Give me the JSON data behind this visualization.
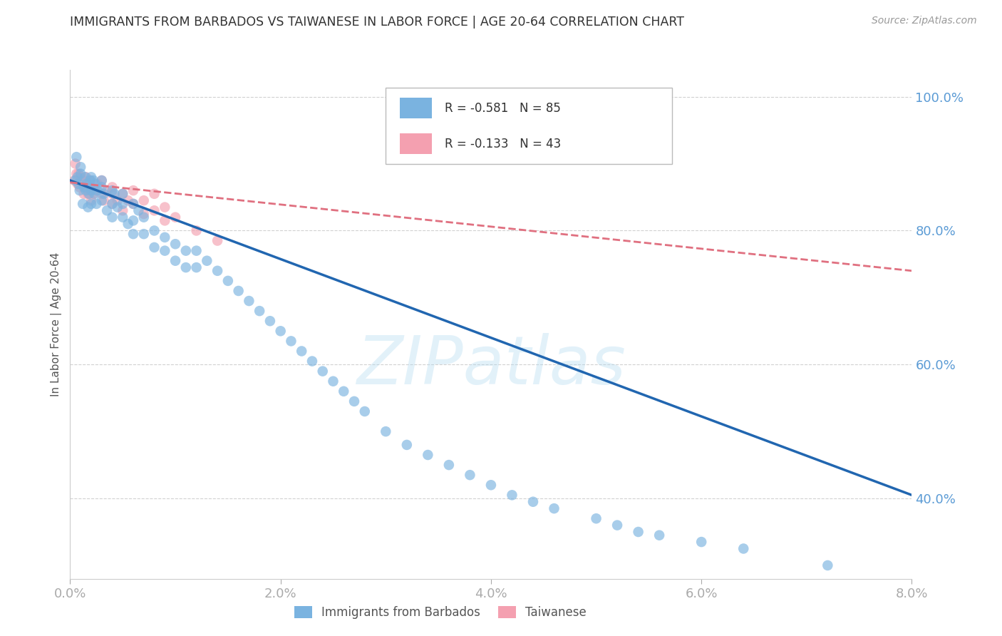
{
  "title": "IMMIGRANTS FROM BARBADOS VS TAIWANESE IN LABOR FORCE | AGE 20-64 CORRELATION CHART",
  "source": "Source: ZipAtlas.com",
  "ylabel": "In Labor Force | Age 20-64",
  "legend_label1": "Immigrants from Barbados",
  "legend_label2": "Taiwanese",
  "xlim": [
    0.0,
    0.08
  ],
  "ylim": [
    0.28,
    1.04
  ],
  "yticks": [
    0.4,
    0.6,
    0.8,
    1.0
  ],
  "ytick_labels": [
    "40.0%",
    "60.0%",
    "80.0%",
    "100.0%"
  ],
  "xticks": [
    0.0,
    0.02,
    0.04,
    0.06,
    0.08
  ],
  "xtick_labels": [
    "0.0%",
    "2.0%",
    "4.0%",
    "6.0%",
    "8.0%"
  ],
  "axis_color": "#5b9bd5",
  "watermark": "ZIPatlas",
  "barbados_R": -0.581,
  "barbados_N": 85,
  "taiwanese_R": -0.133,
  "taiwanese_N": 43,
  "barbados_color": "#7ab3e0",
  "barbados_trend_color": "#2166b0",
  "taiwanese_color": "#f4a0b0",
  "taiwanese_trend_color": "#e07080",
  "barbados_x": [
    0.0005,
    0.0006,
    0.0007,
    0.0008,
    0.0009,
    0.001,
    0.001,
    0.0012,
    0.0013,
    0.0014,
    0.0015,
    0.0016,
    0.0017,
    0.0018,
    0.0019,
    0.002,
    0.002,
    0.002,
    0.0022,
    0.0023,
    0.0024,
    0.0025,
    0.0026,
    0.003,
    0.003,
    0.003,
    0.0032,
    0.0035,
    0.004,
    0.004,
    0.004,
    0.0042,
    0.0045,
    0.005,
    0.005,
    0.005,
    0.0055,
    0.006,
    0.006,
    0.006,
    0.0065,
    0.007,
    0.007,
    0.008,
    0.008,
    0.009,
    0.009,
    0.01,
    0.01,
    0.011,
    0.011,
    0.012,
    0.012,
    0.013,
    0.014,
    0.015,
    0.016,
    0.017,
    0.018,
    0.019,
    0.02,
    0.021,
    0.022,
    0.023,
    0.024,
    0.025,
    0.026,
    0.027,
    0.028,
    0.03,
    0.032,
    0.034,
    0.036,
    0.038,
    0.04,
    0.042,
    0.044,
    0.046,
    0.05,
    0.052,
    0.054,
    0.056,
    0.06,
    0.064,
    0.072
  ],
  "barbados_y": [
    0.875,
    0.91,
    0.88,
    0.87,
    0.86,
    0.885,
    0.895,
    0.84,
    0.865,
    0.88,
    0.86,
    0.87,
    0.835,
    0.855,
    0.875,
    0.88,
    0.86,
    0.84,
    0.875,
    0.855,
    0.87,
    0.84,
    0.86,
    0.875,
    0.845,
    0.865,
    0.855,
    0.83,
    0.86,
    0.84,
    0.82,
    0.855,
    0.835,
    0.84,
    0.82,
    0.855,
    0.81,
    0.84,
    0.815,
    0.795,
    0.83,
    0.82,
    0.795,
    0.8,
    0.775,
    0.79,
    0.77,
    0.78,
    0.755,
    0.77,
    0.745,
    0.77,
    0.745,
    0.755,
    0.74,
    0.725,
    0.71,
    0.695,
    0.68,
    0.665,
    0.65,
    0.635,
    0.62,
    0.605,
    0.59,
    0.575,
    0.56,
    0.545,
    0.53,
    0.5,
    0.48,
    0.465,
    0.45,
    0.435,
    0.42,
    0.405,
    0.395,
    0.385,
    0.37,
    0.36,
    0.35,
    0.345,
    0.335,
    0.325,
    0.3
  ],
  "taiwanese_x": [
    0.0004,
    0.0005,
    0.0006,
    0.0007,
    0.0008,
    0.0009,
    0.001,
    0.0011,
    0.0012,
    0.0013,
    0.0014,
    0.0015,
    0.0016,
    0.0017,
    0.0018,
    0.0019,
    0.002,
    0.002,
    0.0022,
    0.0024,
    0.0026,
    0.003,
    0.003,
    0.0032,
    0.0035,
    0.004,
    0.004,
    0.004,
    0.0045,
    0.005,
    0.005,
    0.0055,
    0.006,
    0.006,
    0.007,
    0.007,
    0.008,
    0.008,
    0.009,
    0.009,
    0.01,
    0.012,
    0.014
  ],
  "taiwanese_y": [
    0.875,
    0.9,
    0.885,
    0.87,
    0.885,
    0.865,
    0.88,
    0.87,
    0.875,
    0.855,
    0.865,
    0.88,
    0.87,
    0.855,
    0.86,
    0.875,
    0.865,
    0.845,
    0.855,
    0.86,
    0.87,
    0.855,
    0.875,
    0.845,
    0.86,
    0.855,
    0.84,
    0.865,
    0.845,
    0.855,
    0.83,
    0.845,
    0.84,
    0.86,
    0.825,
    0.845,
    0.83,
    0.855,
    0.835,
    0.815,
    0.82,
    0.8,
    0.785
  ],
  "trend_barbados_x0": 0.0,
  "trend_barbados_y0": 0.875,
  "trend_barbados_x1": 0.08,
  "trend_barbados_y1": 0.405,
  "trend_taiwanese_x0": 0.0,
  "trend_taiwanese_y0": 0.872,
  "trend_taiwanese_x1": 0.08,
  "trend_taiwanese_y1": 0.74
}
